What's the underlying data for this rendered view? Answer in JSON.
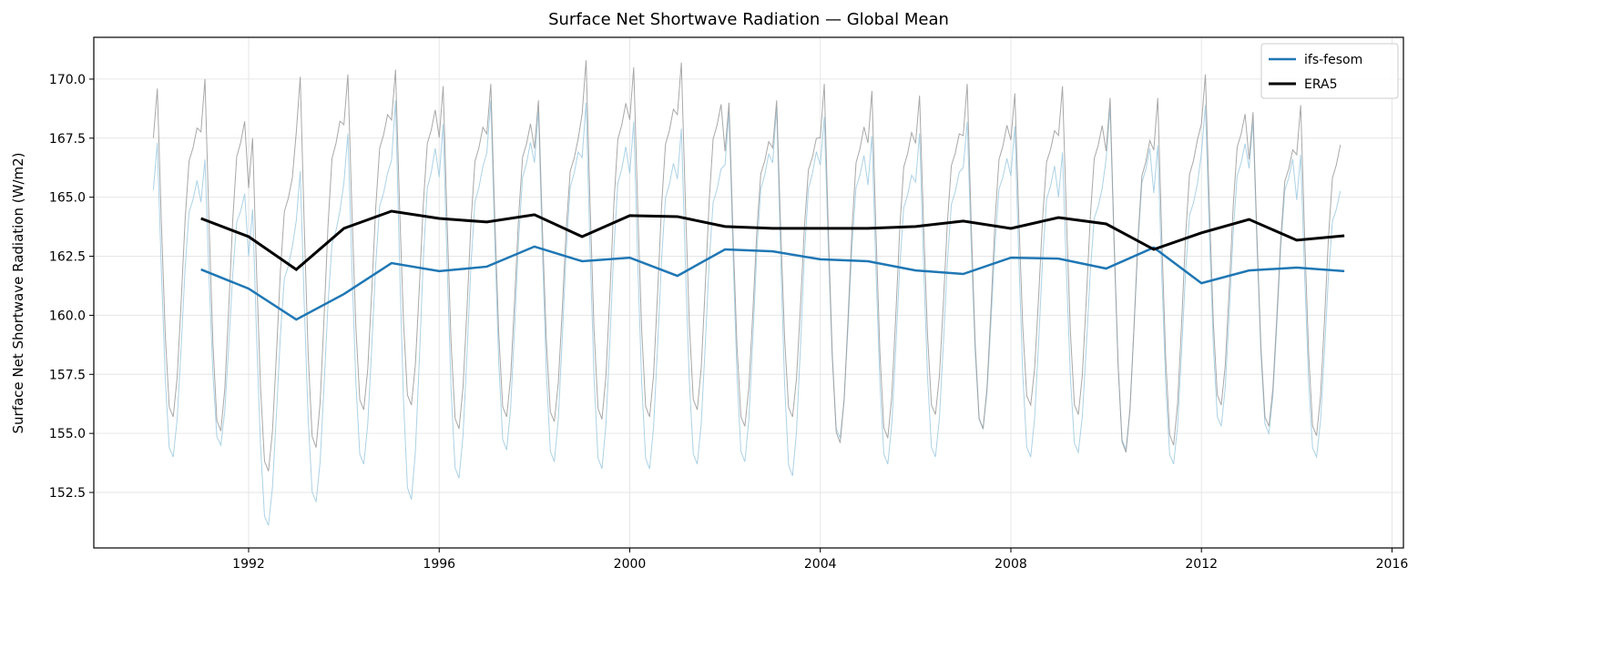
{
  "chart_data": {
    "type": "line",
    "title": "Surface Net Shortwave Radiation — Global Mean",
    "xlabel": "",
    "ylabel": "Surface Net Shortwave Radiation (W/m2)",
    "xlim": [
      1988.75,
      2016.24
    ],
    "ylim": [
      150.15,
      171.77
    ],
    "x_ticks": [
      "1992",
      "1996",
      "2000",
      "2004",
      "2008",
      "2012",
      "2016"
    ],
    "y_ticks": [
      "152.5",
      "155.0",
      "157.5",
      "160.0",
      "162.5",
      "165.0",
      "167.5",
      "170.0"
    ],
    "grid": true,
    "legend_position": "top-right",
    "annual_years": [
      1991,
      1992,
      1993,
      1994,
      1995,
      1996,
      1997,
      1998,
      1999,
      2000,
      2001,
      2002,
      2003,
      2004,
      2005,
      2006,
      2007,
      2008,
      2009,
      2010,
      2011,
      2012,
      2013,
      2014,
      2015
    ],
    "series": [
      {
        "name": "ifs-fesom",
        "color": "#1f77b4",
        "values": [
          161.94,
          161.13,
          159.82,
          160.9,
          162.21,
          161.87,
          162.06,
          162.91,
          162.29,
          162.44,
          161.67,
          162.79,
          162.71,
          162.37,
          162.29,
          161.9,
          161.75,
          162.44,
          162.4,
          161.98,
          162.87,
          161.36,
          161.9,
          162.02,
          161.87
        ]
      },
      {
        "name": "ERA5",
        "color": "#000000",
        "values": [
          164.1,
          163.33,
          161.94,
          163.68,
          164.41,
          164.1,
          163.95,
          164.26,
          163.33,
          164.22,
          164.18,
          163.76,
          163.68,
          163.68,
          163.68,
          163.76,
          163.99,
          163.68,
          164.14,
          163.87,
          162.79,
          163.49,
          164.06,
          163.18,
          163.37
        ]
      }
    ],
    "monthly_years": [
      1990,
      1991,
      1992,
      1993,
      1994,
      1995,
      1996,
      1997,
      1998,
      1999,
      2000,
      2001,
      2002,
      2003,
      2004,
      2005,
      2006,
      2007,
      2008,
      2009,
      2010,
      2011,
      2012,
      2013,
      2014
    ],
    "monthly_series": [
      {
        "of": "ifs-fesom",
        "color": "#9ecae1",
        "annual_max": [
          167.3,
          166.6,
          164.5,
          166.1,
          167.7,
          169.1,
          168.1,
          169.1,
          168.7,
          169.0,
          168.2,
          167.9,
          168.6,
          168.8,
          168.4,
          167.6,
          167.7,
          168.2,
          168.0,
          166.9,
          168.8,
          167.2,
          168.9,
          168.2,
          166.8
        ],
        "annual_min": [
          154.0,
          154.5,
          151.1,
          152.1,
          153.7,
          152.2,
          153.1,
          154.3,
          153.8,
          153.5,
          153.5,
          153.7,
          153.8,
          153.2,
          154.8,
          153.7,
          154.0,
          155.2,
          154.0,
          154.2,
          154.3,
          153.7,
          155.3,
          155.0,
          154.0
        ]
      },
      {
        "of": "ERA5",
        "color": "#999999",
        "annual_max": [
          169.6,
          170.0,
          167.5,
          170.1,
          170.2,
          170.4,
          169.7,
          169.8,
          169.1,
          170.8,
          170.5,
          170.7,
          169.0,
          169.1,
          169.8,
          169.5,
          169.3,
          169.8,
          169.4,
          169.7,
          169.2,
          169.2,
          170.2,
          168.6,
          168.9
        ],
        "annual_min": [
          155.7,
          155.1,
          153.4,
          154.4,
          156.0,
          156.2,
          155.2,
          155.7,
          155.5,
          155.6,
          155.7,
          156.0,
          155.3,
          155.7,
          154.6,
          154.8,
          155.8,
          155.2,
          156.2,
          155.8,
          154.2,
          154.5,
          156.2,
          155.3,
          154.9
        ]
      }
    ]
  }
}
